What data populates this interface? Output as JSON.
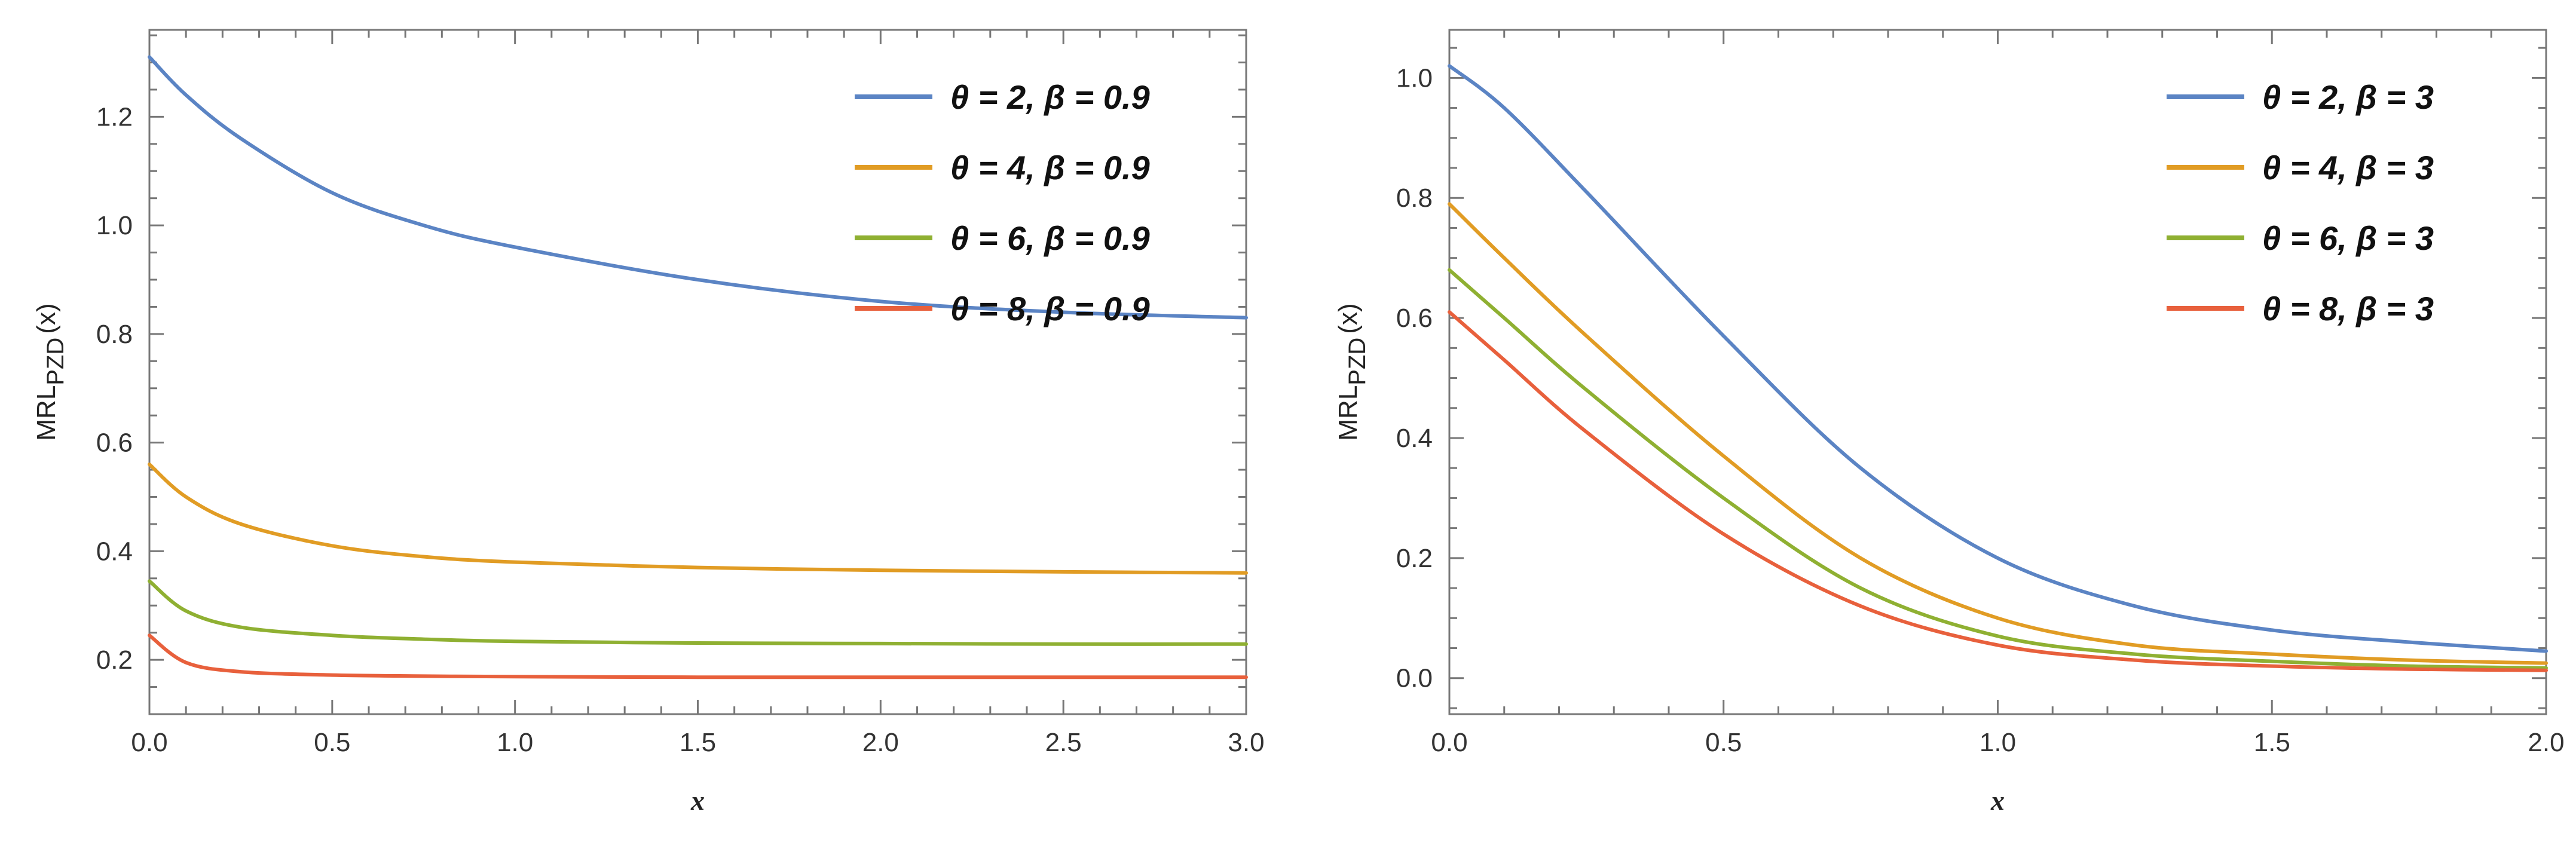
{
  "colors": {
    "blue": "#5b84c4",
    "orange": "#e19c24",
    "green": "#8fb032",
    "red": "#e8603c"
  },
  "chart_data": [
    {
      "type": "line",
      "title": "",
      "xlabel": "x",
      "ylabel_main": "MRL",
      "ylabel_sub": "PZD",
      "ylabel_arg": "(x)",
      "xlim": [
        0,
        3.0
      ],
      "ylim": [
        0.1,
        1.36
      ],
      "xticks": [
        "0.0",
        "0.5",
        "1.0",
        "1.5",
        "2.0",
        "2.5",
        "3.0"
      ],
      "xtick_values": [
        0,
        0.5,
        1.0,
        1.5,
        2.0,
        2.5,
        3.0
      ],
      "yticks": [
        "0.2",
        "0.4",
        "0.6",
        "0.8",
        "1.0",
        "1.2"
      ],
      "ytick_values": [
        0.2,
        0.4,
        0.6,
        0.8,
        1.0,
        1.2
      ],
      "legend_position": "top-right",
      "series": [
        {
          "name": "θ = 2, β = 0.9",
          "color": "#5b84c4",
          "x": [
            0,
            0.1,
            0.25,
            0.5,
            0.75,
            1.0,
            1.5,
            2.0,
            2.5,
            3.0
          ],
          "y": [
            1.31,
            1.24,
            1.16,
            1.06,
            1.0,
            0.96,
            0.9,
            0.86,
            0.84,
            0.83
          ]
        },
        {
          "name": "θ = 4, β = 0.9",
          "color": "#e19c24",
          "x": [
            0,
            0.1,
            0.25,
            0.5,
            0.75,
            1.0,
            1.5,
            2.0,
            2.5,
            3.0
          ],
          "y": [
            0.56,
            0.5,
            0.45,
            0.41,
            0.39,
            0.38,
            0.37,
            0.365,
            0.362,
            0.36
          ]
        },
        {
          "name": "θ = 6, β = 0.9",
          "color": "#8fb032",
          "x": [
            0,
            0.1,
            0.25,
            0.5,
            0.75,
            1.0,
            1.5,
            2.0,
            2.5,
            3.0
          ],
          "y": [
            0.345,
            0.29,
            0.26,
            0.245,
            0.238,
            0.234,
            0.231,
            0.23,
            0.229,
            0.229
          ]
        },
        {
          "name": "θ = 8, β = 0.9",
          "color": "#e8603c",
          "x": [
            0,
            0.1,
            0.25,
            0.5,
            0.75,
            1.0,
            1.5,
            2.0,
            2.5,
            3.0
          ],
          "y": [
            0.245,
            0.195,
            0.178,
            0.172,
            0.17,
            0.169,
            0.168,
            0.168,
            0.168,
            0.168
          ]
        }
      ]
    },
    {
      "type": "line",
      "title": "",
      "xlabel": "x",
      "ylabel_main": "MRL",
      "ylabel_sub": "PZD",
      "ylabel_arg": "(x)",
      "xlim": [
        0,
        2.0
      ],
      "ylim": [
        -0.06,
        1.08
      ],
      "xticks": [
        "0.0",
        "0.5",
        "1.0",
        "1.5",
        "2.0"
      ],
      "xtick_values": [
        0,
        0.5,
        1.0,
        1.5,
        2.0
      ],
      "yticks": [
        "0.0",
        "0.2",
        "0.4",
        "0.6",
        "0.8",
        "1.0"
      ],
      "ytick_values": [
        0,
        0.2,
        0.4,
        0.6,
        0.8,
        1.0
      ],
      "legend_position": "top-right",
      "series": [
        {
          "name": "θ = 2, β = 3",
          "color": "#5b84c4",
          "x": [
            0,
            0.1,
            0.25,
            0.5,
            0.75,
            1.0,
            1.25,
            1.5,
            1.75,
            2.0
          ],
          "y": [
            1.02,
            0.95,
            0.81,
            0.57,
            0.35,
            0.2,
            0.12,
            0.08,
            0.06,
            0.045
          ]
        },
        {
          "name": "θ = 4, β = 3",
          "color": "#e19c24",
          "x": [
            0,
            0.1,
            0.25,
            0.5,
            0.75,
            1.0,
            1.25,
            1.5,
            1.75,
            2.0
          ],
          "y": [
            0.79,
            0.7,
            0.57,
            0.37,
            0.2,
            0.1,
            0.055,
            0.04,
            0.03,
            0.025
          ]
        },
        {
          "name": "θ = 6, β = 3",
          "color": "#8fb032",
          "x": [
            0,
            0.1,
            0.25,
            0.5,
            0.75,
            1.0,
            1.25,
            1.5,
            1.75,
            2.0
          ],
          "y": [
            0.68,
            0.6,
            0.48,
            0.3,
            0.15,
            0.07,
            0.04,
            0.028,
            0.02,
            0.017
          ]
        },
        {
          "name": "θ = 8, β = 3",
          "color": "#e8603c",
          "x": [
            0,
            0.1,
            0.25,
            0.5,
            0.75,
            1.0,
            1.25,
            1.5,
            1.75,
            2.0
          ],
          "y": [
            0.61,
            0.53,
            0.41,
            0.24,
            0.12,
            0.055,
            0.03,
            0.02,
            0.015,
            0.013
          ]
        }
      ]
    }
  ]
}
